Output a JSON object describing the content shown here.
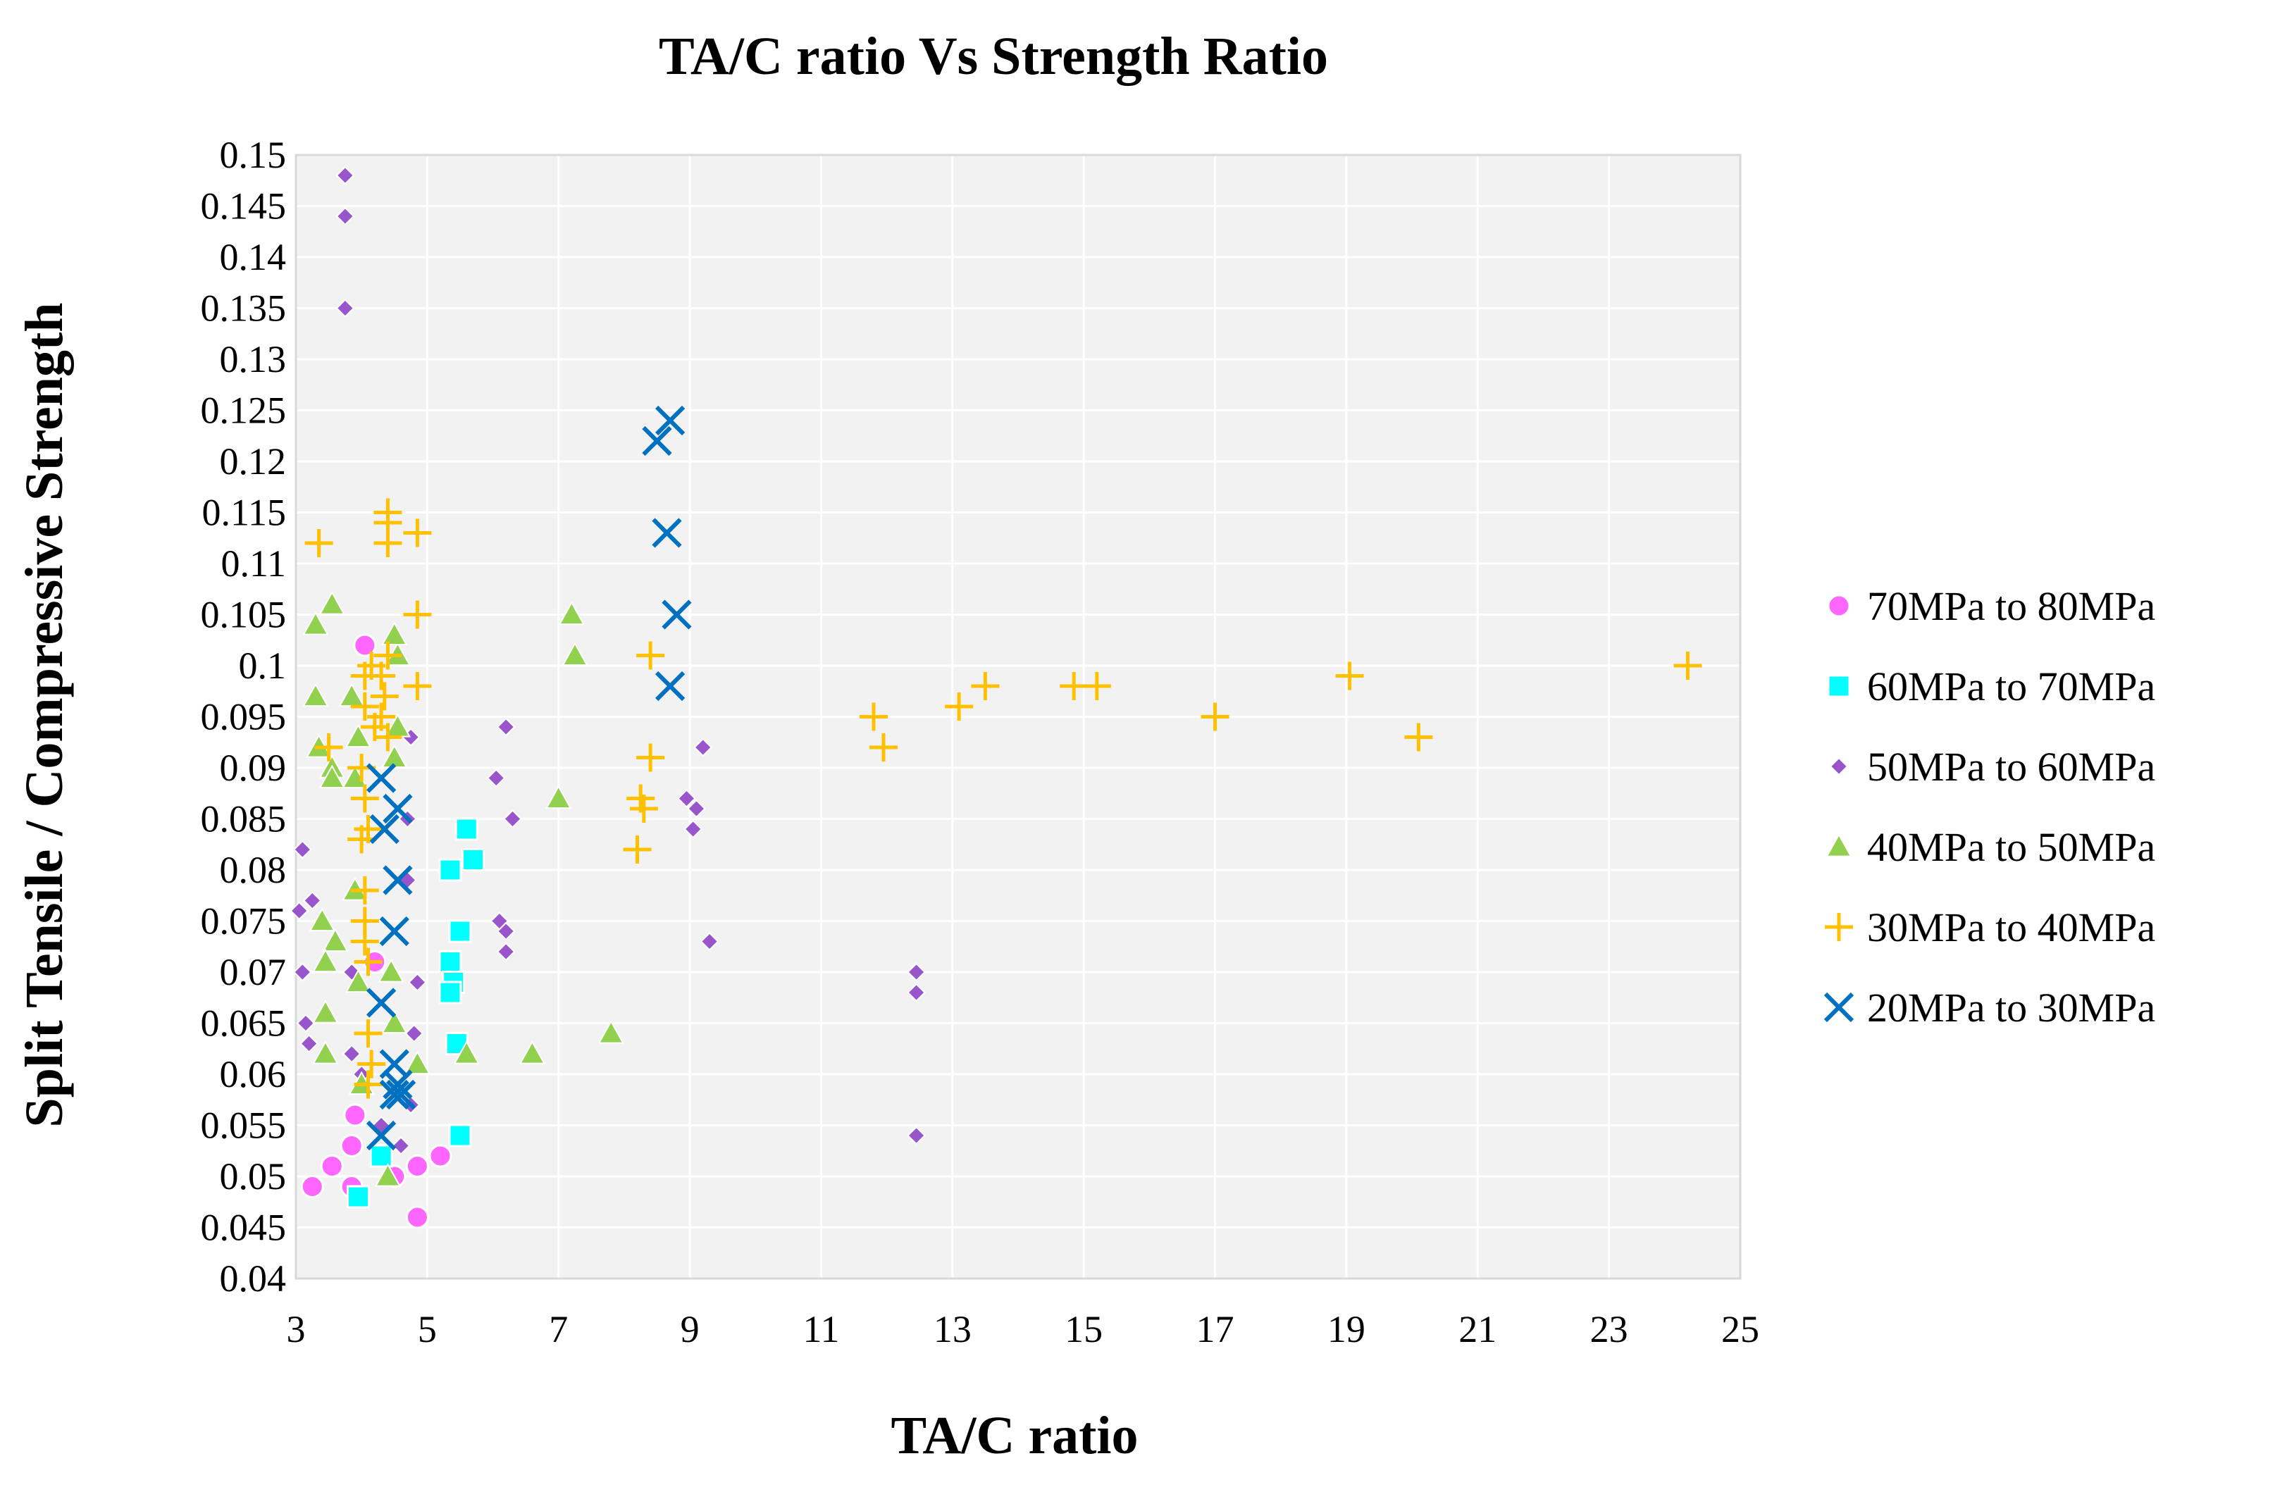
{
  "chart_data": {
    "type": "scatter",
    "title": "TA/C ratio Vs Strength Ratio",
    "xlabel": "TA/C ratio",
    "ylabel": "Split Tensile / Compressive Strength",
    "xlim": [
      3,
      25
    ],
    "ylim": [
      0.04,
      0.15
    ],
    "x_ticks": [
      "3",
      "5",
      "7",
      "9",
      "11",
      "13",
      "15",
      "17",
      "19",
      "21",
      "23",
      "25"
    ],
    "y_ticks": [
      "0.04",
      "0.045",
      "0.05",
      "0.055",
      "0.06",
      "0.065",
      "0.07",
      "0.075",
      "0.08",
      "0.085",
      "0.09",
      "0.095",
      "0.1",
      "0.105",
      "0.11",
      "0.115",
      "0.12",
      "0.125",
      "0.13",
      "0.135",
      "0.14",
      "0.145",
      "0.15"
    ],
    "grid": true,
    "plot_background": "#f2f2f2",
    "grid_color": "#ffffff",
    "legend_position": "right",
    "series": [
      {
        "name": "70MPa to 80MPa",
        "marker": "circle",
        "color": "#ff66ff",
        "points": [
          [
            4.05,
            0.102
          ],
          [
            4.2,
            0.071
          ],
          [
            3.9,
            0.056
          ],
          [
            3.85,
            0.053
          ],
          [
            3.55,
            0.051
          ],
          [
            3.25,
            0.049
          ],
          [
            3.85,
            0.049
          ],
          [
            4.5,
            0.05
          ],
          [
            4.85,
            0.051
          ],
          [
            5.2,
            0.052
          ],
          [
            4.85,
            0.046
          ]
        ]
      },
      {
        "name": "60MPa to 70MPa",
        "marker": "square",
        "color": "#00ffff",
        "points": [
          [
            5.6,
            0.084
          ],
          [
            5.7,
            0.081
          ],
          [
            5.35,
            0.08
          ],
          [
            5.5,
            0.074
          ],
          [
            5.35,
            0.071
          ],
          [
            5.4,
            0.069
          ],
          [
            5.35,
            0.068
          ],
          [
            5.45,
            0.063
          ],
          [
            5.5,
            0.054
          ],
          [
            4.3,
            0.052
          ],
          [
            3.95,
            0.048
          ]
        ]
      },
      {
        "name": "50MPa to 60MPa",
        "marker": "diamond",
        "color": "#9955cc",
        "points": [
          [
            3.75,
            0.148
          ],
          [
            3.75,
            0.144
          ],
          [
            3.75,
            0.135
          ],
          [
            6.2,
            0.094
          ],
          [
            9.2,
            0.092
          ],
          [
            4.75,
            0.093
          ],
          [
            6.05,
            0.089
          ],
          [
            8.95,
            0.087
          ],
          [
            9.1,
            0.086
          ],
          [
            6.3,
            0.085
          ],
          [
            9.05,
            0.084
          ],
          [
            4.7,
            0.085
          ],
          [
            3.1,
            0.082
          ],
          [
            4.7,
            0.079
          ],
          [
            3.25,
            0.077
          ],
          [
            3.05,
            0.076
          ],
          [
            6.1,
            0.075
          ],
          [
            6.2,
            0.074
          ],
          [
            9.3,
            0.073
          ],
          [
            6.2,
            0.072
          ],
          [
            3.1,
            0.07
          ],
          [
            3.85,
            0.07
          ],
          [
            12.45,
            0.07
          ],
          [
            4.85,
            0.069
          ],
          [
            12.45,
            0.068
          ],
          [
            3.15,
            0.065
          ],
          [
            4.8,
            0.064
          ],
          [
            3.2,
            0.063
          ],
          [
            3.85,
            0.062
          ],
          [
            4.0,
            0.06
          ],
          [
            4.75,
            0.057
          ],
          [
            4.3,
            0.055
          ],
          [
            4.6,
            0.053
          ],
          [
            12.45,
            0.054
          ]
        ]
      },
      {
        "name": "40MPa to 50MPa",
        "marker": "triangle",
        "color": "#92d050",
        "points": [
          [
            3.55,
            0.106
          ],
          [
            3.3,
            0.104
          ],
          [
            7.2,
            0.105
          ],
          [
            7.25,
            0.101
          ],
          [
            4.55,
            0.101
          ],
          [
            4.5,
            0.103
          ],
          [
            3.3,
            0.097
          ],
          [
            3.85,
            0.097
          ],
          [
            4.55,
            0.094
          ],
          [
            3.35,
            0.092
          ],
          [
            3.55,
            0.09
          ],
          [
            3.95,
            0.093
          ],
          [
            4.5,
            0.091
          ],
          [
            3.55,
            0.089
          ],
          [
            3.9,
            0.089
          ],
          [
            7.0,
            0.087
          ],
          [
            3.9,
            0.078
          ],
          [
            3.4,
            0.075
          ],
          [
            3.6,
            0.073
          ],
          [
            3.45,
            0.071
          ],
          [
            4.45,
            0.07
          ],
          [
            3.95,
            0.069
          ],
          [
            3.45,
            0.066
          ],
          [
            4.5,
            0.065
          ],
          [
            3.45,
            0.062
          ],
          [
            5.6,
            0.062
          ],
          [
            6.6,
            0.062
          ],
          [
            7.8,
            0.064
          ],
          [
            4.85,
            0.061
          ],
          [
            4.0,
            0.059
          ],
          [
            4.4,
            0.05
          ]
        ]
      },
      {
        "name": "30MPa to 40MPa",
        "marker": "plus",
        "color": "#ffc000",
        "points": [
          [
            3.35,
            0.112
          ],
          [
            4.4,
            0.115
          ],
          [
            4.4,
            0.114
          ],
          [
            4.85,
            0.113
          ],
          [
            4.4,
            0.112
          ],
          [
            4.85,
            0.105
          ],
          [
            4.4,
            0.101
          ],
          [
            4.15,
            0.1
          ],
          [
            4.3,
            0.099
          ],
          [
            4.05,
            0.099
          ],
          [
            4.85,
            0.098
          ],
          [
            4.35,
            0.097
          ],
          [
            4.05,
            0.096
          ],
          [
            4.3,
            0.095
          ],
          [
            4.2,
            0.094
          ],
          [
            4.4,
            0.093
          ],
          [
            3.5,
            0.092
          ],
          [
            4.0,
            0.09
          ],
          [
            4.05,
            0.087
          ],
          [
            4.1,
            0.084
          ],
          [
            4.0,
            0.083
          ],
          [
            4.05,
            0.078
          ],
          [
            4.05,
            0.075
          ],
          [
            4.05,
            0.073
          ],
          [
            4.1,
            0.071
          ],
          [
            4.1,
            0.064
          ],
          [
            4.15,
            0.061
          ],
          [
            4.1,
            0.059
          ],
          [
            8.4,
            0.101
          ],
          [
            8.4,
            0.091
          ],
          [
            8.25,
            0.087
          ],
          [
            8.3,
            0.086
          ],
          [
            8.2,
            0.082
          ],
          [
            11.8,
            0.095
          ],
          [
            11.95,
            0.092
          ],
          [
            13.1,
            0.096
          ],
          [
            13.5,
            0.098
          ],
          [
            14.85,
            0.098
          ],
          [
            15.2,
            0.098
          ],
          [
            17.0,
            0.095
          ],
          [
            19.05,
            0.099
          ],
          [
            20.1,
            0.093
          ],
          [
            24.2,
            0.1
          ]
        ]
      },
      {
        "name": "20MPa to 30MPa",
        "marker": "x",
        "color": "#0070c0",
        "points": [
          [
            8.7,
            0.124
          ],
          [
            8.5,
            0.122
          ],
          [
            8.65,
            0.113
          ],
          [
            8.8,
            0.105
          ],
          [
            8.7,
            0.098
          ],
          [
            4.3,
            0.089
          ],
          [
            4.55,
            0.086
          ],
          [
            4.35,
            0.084
          ],
          [
            4.55,
            0.079
          ],
          [
            4.5,
            0.074
          ],
          [
            4.3,
            0.067
          ],
          [
            4.5,
            0.061
          ],
          [
            4.55,
            0.059
          ],
          [
            4.5,
            0.058
          ],
          [
            4.6,
            0.058
          ],
          [
            4.3,
            0.054
          ]
        ]
      }
    ]
  }
}
